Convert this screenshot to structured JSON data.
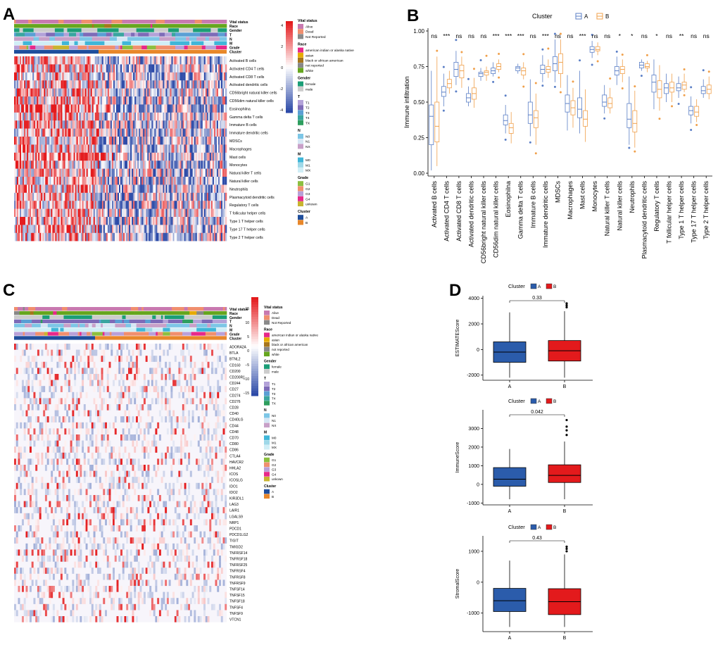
{
  "panels": {
    "A": "A",
    "B": "B",
    "C": "C",
    "D": "D"
  },
  "colors": {
    "cluster_A": "#1f4e9c",
    "cluster_B": "#e8872a",
    "heat_high": "#e41a1c",
    "heat_low": "#2c4aa8",
    "heat_mid": "#ffffff",
    "box_A": "#5b7fc6",
    "box_B": "#f0a04b",
    "d_A": "#2b5cab",
    "d_B": "#e31a1c"
  },
  "annotation_rows": [
    "Vital status",
    "Race",
    "Gender",
    "T",
    "N",
    "M",
    "Grade",
    "Cluster"
  ],
  "legend_A": [
    {
      "title": "Vital status",
      "colors": [
        "#c879b0",
        "#f08f6e",
        "#8a8a8a"
      ],
      "items": [
        "Alive",
        "Dead",
        "Not Reported"
      ]
    },
    {
      "title": "Race",
      "colors": [
        "#e7298a",
        "#e6ab02",
        "#a6761d",
        "#888888",
        "#66a61e"
      ],
      "items": [
        "american indian or alaska native",
        "asian",
        "black or african american",
        "not reported",
        "white"
      ]
    },
    {
      "title": "Gender",
      "colors": [
        "#1b9e77",
        "#cccccc"
      ],
      "items": [
        "female",
        "male"
      ]
    },
    {
      "title": "T",
      "colors": [
        "#b3a2d8",
        "#7e6bb8",
        "#5a9fd4",
        "#3aa5a0",
        "#2e9e5e"
      ],
      "items": [
        "T1",
        "T2",
        "T3",
        "T4",
        "TX"
      ]
    },
    {
      "title": "N",
      "colors": [
        "#7dc6e6",
        "#d6e6f4",
        "#c8a0c8"
      ],
      "items": [
        "N0",
        "N1",
        "NX"
      ]
    },
    {
      "title": "M",
      "colors": [
        "#3fb6d8",
        "#9ed8e8",
        "#d0eef6"
      ],
      "items": [
        "M0",
        "M1",
        "MX"
      ]
    },
    {
      "title": "Grade",
      "colors": [
        "#8cbf3f",
        "#f08f6e",
        "#b8a0d8",
        "#e7298a",
        "#c8b430"
      ],
      "items": [
        "G1",
        "G2",
        "G3",
        "G4",
        "unkown"
      ]
    },
    {
      "title": "Cluster",
      "colors": [
        "#1f4e9c",
        "#e8872a"
      ],
      "items": [
        "A",
        "B"
      ]
    }
  ],
  "colorbar_A": [
    "4",
    "2",
    "0",
    "-2",
    "-4"
  ],
  "colorbar_C": [
    "15",
    "10",
    "5",
    "0",
    "−5",
    "−10",
    "−15"
  ],
  "immune_cells": [
    "Activated B cells",
    "Activated CD4 T cells",
    "Activated CD8 T cells",
    "Activated dendritic cells",
    "CD56bright natural killer cells",
    "CD56dim natural killer cells",
    "Eosinophilna",
    "Gamma delta T cells",
    "Immature B cells",
    "Immature dendritic cells",
    "MDSCs",
    "Macrophages",
    "Mast cells",
    "Monocytes",
    "Natural killer T cells",
    "Natural killer cells",
    "Neutrophils",
    "Plasmacytoid dendritic cells",
    "Regulatory T cells",
    "T follicular helper cells",
    "Type 1 T helper cells",
    "Type 17 T helper cells",
    "Type 2 T helper cells"
  ],
  "checkpoint_genes": [
    "ADORA2A",
    "BTLA",
    "BTNL2",
    "CD160",
    "CD200",
    "CD200R1",
    "CD244",
    "CD27",
    "CD274",
    "CD276",
    "CD28",
    "CD40",
    "CD40LG",
    "CD44",
    "CD48",
    "CD70",
    "CD80",
    "CD86",
    "CTLA4",
    "HAVCR2",
    "HHLA2",
    "ICOS",
    "ICOSLG",
    "IDO1",
    "IDO2",
    "KIR3DL1",
    "LAG3",
    "LAIR1",
    "LGALS9",
    "NRP1",
    "PDCD1",
    "PDCD1LG2",
    "TIGIT",
    "TMIGD2",
    "TNFRSF14",
    "TNFRSF18",
    "TNFRSF25",
    "TNFRSF4",
    "TNFRSF8",
    "TNFRSF9",
    "TNFSF14",
    "TNFSF15",
    "TNFSF18",
    "TNFSF4",
    "TNFSF9",
    "VTCN1"
  ],
  "chart_data": [
    {
      "panel": "B",
      "type": "box",
      "title": "",
      "legend_title": "Cluster",
      "legend_placement": "top",
      "ylabel": "Immune infiltration",
      "ylim": [
        0,
        1.0
      ],
      "yticks": [
        "0.00",
        "0.25",
        "0.50",
        "0.75",
        "1.00"
      ],
      "categories": [
        "Activated B cells",
        "Activated CD4 T cells",
        "Activated CD8 T cells",
        "Activated dendritic cells",
        "CD56bright natural killer cells",
        "CD56dim natural killer cells",
        "Eosinophilna",
        "Gamma delta T cells",
        "Immature B cells",
        "Immature dendritic cells",
        "MDSCs",
        "Macrophages",
        "Mast cells",
        "Monocytes",
        "Natural killer T cells",
        "Natural killer cells",
        "Neutrophils",
        "Plasmacytoid dendritic cells",
        "Regulatory T cells",
        "T follicular helper cells",
        "Type 1 T helper cells",
        "Type 17 T helper cells",
        "Type 2 T helper cells"
      ],
      "significance": [
        "ns",
        "***",
        "ns",
        "ns",
        "ns",
        "***",
        "***",
        "***",
        "ns",
        "***",
        "ns",
        "ns",
        "***",
        "ns",
        "ns",
        "*",
        "*",
        "ns",
        "*",
        "ns",
        "**",
        "ns",
        "ns"
      ],
      "series": [
        {
          "name": "A",
          "boxes": [
            [
              0.02,
              0.2,
              0.4,
              0.48,
              0.72
            ],
            [
              0.47,
              0.54,
              0.57,
              0.61,
              0.7
            ],
            [
              0.62,
              0.68,
              0.73,
              0.78,
              0.86
            ],
            [
              0.47,
              0.5,
              0.53,
              0.56,
              0.61
            ],
            [
              0.65,
              0.68,
              0.7,
              0.71,
              0.74
            ],
            [
              0.68,
              0.7,
              0.72,
              0.74,
              0.78
            ],
            [
              0.28,
              0.34,
              0.37,
              0.41,
              0.48
            ],
            [
              0.7,
              0.72,
              0.74,
              0.75,
              0.77
            ],
            [
              0.26,
              0.35,
              0.41,
              0.5,
              0.66
            ],
            [
              0.64,
              0.7,
              0.73,
              0.76,
              0.83
            ],
            [
              0.64,
              0.72,
              0.77,
              0.82,
              0.94
            ],
            [
              0.3,
              0.43,
              0.49,
              0.55,
              0.69
            ],
            [
              0.28,
              0.39,
              0.45,
              0.53,
              0.72
            ],
            [
              0.81,
              0.85,
              0.87,
              0.89,
              0.93
            ],
            [
              0.42,
              0.47,
              0.5,
              0.55,
              0.62
            ],
            [
              0.62,
              0.69,
              0.72,
              0.75,
              0.82
            ],
            [
              0.2,
              0.32,
              0.38,
              0.49,
              0.68
            ],
            [
              0.72,
              0.74,
              0.76,
              0.78,
              0.8
            ],
            [
              0.45,
              0.57,
              0.64,
              0.69,
              0.8
            ],
            [
              0.5,
              0.56,
              0.6,
              0.63,
              0.7
            ],
            [
              0.53,
              0.58,
              0.6,
              0.63,
              0.68
            ],
            [
              0.35,
              0.41,
              0.44,
              0.47,
              0.54
            ],
            [
              0.53,
              0.56,
              0.58,
              0.61,
              0.66
            ]
          ]
        },
        {
          "name": "B",
          "boxes": [
            [
              0.05,
              0.22,
              0.33,
              0.5,
              0.82
            ],
            [
              0.56,
              0.6,
              0.63,
              0.66,
              0.72
            ],
            [
              0.6,
              0.67,
              0.72,
              0.76,
              0.82
            ],
            [
              0.46,
              0.52,
              0.56,
              0.6,
              0.67
            ],
            [
              0.65,
              0.69,
              0.71,
              0.72,
              0.75
            ],
            [
              0.71,
              0.73,
              0.75,
              0.77,
              0.8
            ],
            [
              0.21,
              0.28,
              0.32,
              0.35,
              0.43
            ],
            [
              0.66,
              0.69,
              0.72,
              0.74,
              0.78
            ],
            [
              0.2,
              0.32,
              0.39,
              0.44,
              0.56
            ],
            [
              0.67,
              0.71,
              0.73,
              0.75,
              0.8
            ],
            [
              0.6,
              0.7,
              0.78,
              0.84,
              0.94
            ],
            [
              0.32,
              0.41,
              0.46,
              0.51,
              0.6
            ],
            [
              0.22,
              0.33,
              0.38,
              0.44,
              0.59
            ],
            [
              0.83,
              0.86,
              0.87,
              0.89,
              0.92
            ],
            [
              0.42,
              0.46,
              0.49,
              0.53,
              0.6
            ],
            [
              0.64,
              0.7,
              0.73,
              0.75,
              0.8
            ],
            [
              0.18,
              0.29,
              0.35,
              0.44,
              0.58
            ],
            [
              0.71,
              0.74,
              0.75,
              0.77,
              0.79
            ],
            [
              0.44,
              0.53,
              0.59,
              0.65,
              0.76
            ],
            [
              0.5,
              0.57,
              0.6,
              0.64,
              0.7
            ],
            [
              0.57,
              0.59,
              0.62,
              0.64,
              0.7
            ],
            [
              0.36,
              0.4,
              0.43,
              0.47,
              0.52
            ],
            [
              0.52,
              0.56,
              0.59,
              0.62,
              0.68
            ]
          ]
        }
      ]
    },
    {
      "panel": "D1",
      "type": "box",
      "legend_title": "Cluster",
      "legend_placement": "top",
      "ylabel": "ESTIMATEScore",
      "categories": [
        "A",
        "B"
      ],
      "ylim": [
        -2400,
        4200
      ],
      "yticks": [
        -2000,
        0,
        2000,
        4000
      ],
      "p_value": "0.33",
      "series": [
        {
          "name": "A",
          "box": [
            -2200,
            -1000,
            -200,
            600,
            2900
          ]
        },
        {
          "name": "B",
          "box": [
            -2200,
            -900,
            -100,
            700,
            3000
          ]
        }
      ],
      "outliers": {
        "B": [
          3300,
          3450,
          3600
        ]
      }
    },
    {
      "panel": "D2",
      "type": "box",
      "legend_title": "Cluster",
      "legend_placement": "top",
      "ylabel": "ImmuneScore",
      "categories": [
        "A",
        "B"
      ],
      "ylim": [
        -1100,
        4000
      ],
      "yticks": [
        -1000,
        0,
        1000,
        2000,
        3000
      ],
      "p_value": "0.042",
      "series": [
        {
          "name": "A",
          "box": [
            -800,
            -100,
            280,
            900,
            1900
          ]
        },
        {
          "name": "B",
          "box": [
            -800,
            100,
            480,
            1050,
            2300
          ]
        }
      ],
      "outliers": {
        "B": [
          2650,
          2900,
          3100,
          3450
        ]
      }
    },
    {
      "panel": "D3",
      "type": "box",
      "legend_title": "Cluster",
      "legend_placement": "top",
      "ylabel": "StromalScore",
      "categories": [
        "A",
        "B"
      ],
      "ylim": [
        -1600,
        1500
      ],
      "yticks": [
        -1000,
        0,
        1000
      ],
      "p_value": "0.43",
      "series": [
        {
          "name": "A",
          "box": [
            -1450,
            -950,
            -600,
            -200,
            700
          ]
        },
        {
          "name": "B",
          "box": [
            -1450,
            -1050,
            -630,
            -210,
            900
          ]
        }
      ],
      "outliers": {
        "B": [
          1000,
          1080,
          1150
        ]
      }
    }
  ]
}
